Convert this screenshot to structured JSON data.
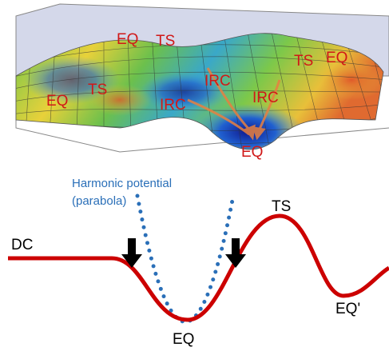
{
  "surface": {
    "labels": [
      "EQ",
      "TS",
      "TS",
      "EQ",
      "EQ",
      "TS",
      "IRC",
      "IRC",
      "IRC",
      "EQ"
    ]
  },
  "profile": {
    "harmonic": "Harmonic potential",
    "parabola": "(parabola)",
    "dc": "DC",
    "ts": "TS",
    "eq": "EQ",
    "eq_prime": "EQ'"
  }
}
